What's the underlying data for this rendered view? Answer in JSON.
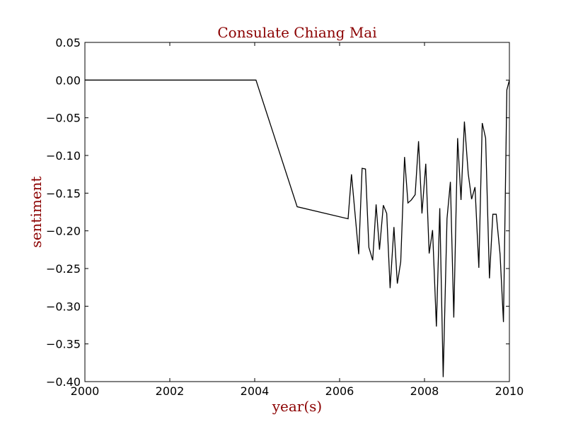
{
  "chart_data": {
    "type": "line",
    "title": "Consulate Chiang Mai",
    "xlabel": "year(s)",
    "ylabel": "sentiment",
    "xlim": [
      2000,
      2010
    ],
    "ylim": [
      -0.4,
      0.05
    ],
    "grid": false,
    "xticks": [
      2000,
      2002,
      2004,
      2006,
      2008,
      2010
    ],
    "xtick_labels": [
      "2000",
      "2002",
      "2004",
      "2006",
      "2008",
      "2010"
    ],
    "yticks": [
      0.05,
      0.0,
      -0.05,
      -0.1,
      -0.15,
      -0.2,
      -0.25,
      -0.3,
      -0.35,
      -0.4
    ],
    "ytick_labels": [
      "0.05",
      "0.00",
      "−0.05",
      "−0.10",
      "−0.15",
      "−0.20",
      "−0.25",
      "−0.30",
      "−0.35",
      "−0.40"
    ],
    "line_color": "#000000",
    "title_color": "#8b0000",
    "series": [
      {
        "x": [
          2000.0,
          2004.03,
          2005.0,
          2006.2,
          2006.28,
          2006.45,
          2006.53,
          2006.61,
          2006.69,
          2006.78,
          2006.86,
          2006.94,
          2007.03,
          2007.11,
          2007.19,
          2007.28,
          2007.36,
          2007.44,
          2007.53,
          2007.61,
          2007.69,
          2007.78,
          2007.86,
          2007.94,
          2008.03,
          2008.11,
          2008.19,
          2008.28,
          2008.36,
          2008.44,
          2008.53,
          2008.61,
          2008.69,
          2008.78,
          2008.86,
          2008.94,
          2009.03,
          2009.11,
          2009.19,
          2009.28,
          2009.36,
          2009.44,
          2009.53,
          2009.61,
          2009.69,
          2009.78,
          2009.86,
          2009.94,
          2010.0
        ],
        "y": [
          0.0,
          0.0,
          -0.168,
          -0.184,
          -0.125,
          -0.231,
          -0.117,
          -0.118,
          -0.222,
          -0.239,
          -0.165,
          -0.225,
          -0.166,
          -0.177,
          -0.276,
          -0.195,
          -0.27,
          -0.241,
          -0.102,
          -0.163,
          -0.159,
          -0.152,
          -0.081,
          -0.177,
          -0.111,
          -0.23,
          -0.199,
          -0.327,
          -0.17,
          -0.394,
          -0.184,
          -0.135,
          -0.315,
          -0.077,
          -0.159,
          -0.055,
          -0.124,
          -0.158,
          -0.142,
          -0.249,
          -0.057,
          -0.077,
          -0.263,
          -0.178,
          -0.178,
          -0.231,
          -0.321,
          -0.013,
          0.0
        ]
      }
    ]
  }
}
